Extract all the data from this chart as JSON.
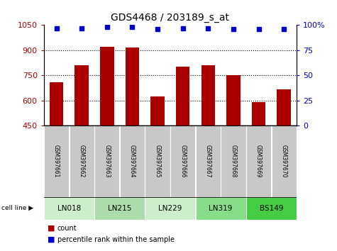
{
  "title": "GDS4468 / 203189_s_at",
  "samples": [
    "GSM397661",
    "GSM397662",
    "GSM397663",
    "GSM397664",
    "GSM397665",
    "GSM397666",
    "GSM397667",
    "GSM397668",
    "GSM397669",
    "GSM397670"
  ],
  "counts": [
    710,
    810,
    920,
    915,
    625,
    800,
    810,
    750,
    590,
    665
  ],
  "percentile_ranks": [
    97,
    97,
    98,
    98,
    96,
    97,
    97,
    96,
    96,
    96
  ],
  "ylim_left": [
    450,
    1050
  ],
  "ylim_right": [
    0,
    100
  ],
  "yticks_left": [
    450,
    600,
    750,
    900,
    1050
  ],
  "yticks_right": [
    0,
    25,
    50,
    75,
    100
  ],
  "cell_lines": [
    {
      "label": "LN018",
      "samples": [
        0,
        1
      ],
      "color": "#cceecc"
    },
    {
      "label": "LN215",
      "samples": [
        2,
        3
      ],
      "color": "#aaddaa"
    },
    {
      "label": "LN229",
      "samples": [
        4,
        5
      ],
      "color": "#cceecc"
    },
    {
      "label": "LN319",
      "samples": [
        6,
        7
      ],
      "color": "#88dd88"
    },
    {
      "label": "BS149",
      "samples": [
        8,
        9
      ],
      "color": "#44cc44"
    }
  ],
  "bar_color": "#aa0000",
  "dot_color": "#0000cc",
  "bar_width": 0.55,
  "sample_box_color": "#c8c8c8",
  "legend_count_color": "#aa0000",
  "legend_pct_color": "#0000cc",
  "gridline_ticks": [
    600,
    750,
    900
  ],
  "fig_width": 4.75,
  "fig_height": 3.54,
  "dpi": 100
}
